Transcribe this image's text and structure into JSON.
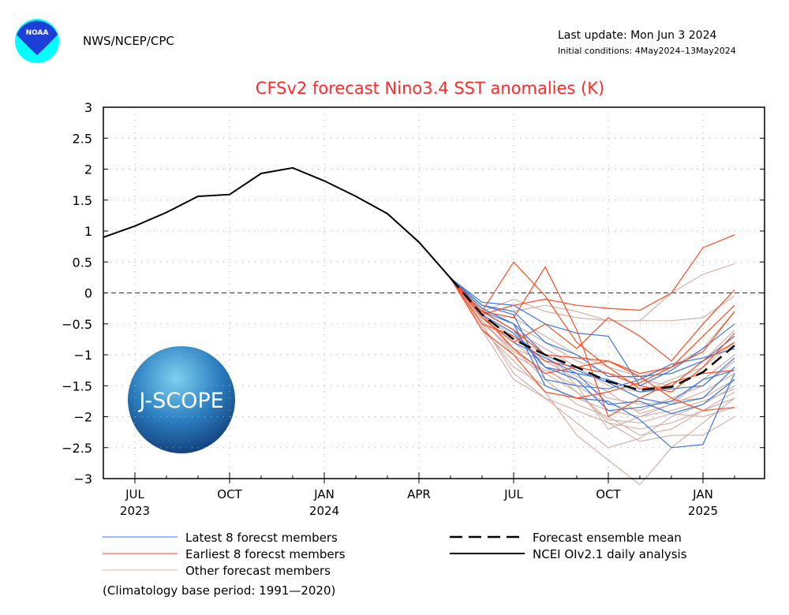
{
  "header": {
    "agency": "NWS/NCEP/CPC",
    "last_update": "Last update: Mon Jun 3 2024",
    "initial_conditions": "Initial conditions: 4May2024–13May2024",
    "noaa_logo_text": "NOAA",
    "jscope_logo_text": "J-SCOPE"
  },
  "chart_data": {
    "type": "line",
    "title": "CFSv2 forecast Nino3.4 SST anomalies (K)",
    "ylim": [
      -3,
      3
    ],
    "xlim": [
      "2023-06",
      "2025-02"
    ],
    "yticks": [
      3,
      2.5,
      2,
      1.5,
      1,
      0.5,
      0,
      -0.5,
      -1,
      -1.5,
      -2,
      -2.5,
      -3
    ],
    "ytick_labels": [
      "3",
      "2.5",
      "2",
      "1.5",
      "1",
      "0.5",
      "0",
      "−0.5",
      "−1",
      "−1.5",
      "−2",
      "−2.5",
      "−3"
    ],
    "xticks": [
      {
        "date": "2023-07",
        "month": "JUL",
        "year": "2023"
      },
      {
        "date": "2023-10",
        "month": "OCT",
        "year": ""
      },
      {
        "date": "2024-01",
        "month": "JAN",
        "year": "2024"
      },
      {
        "date": "2024-04",
        "month": "APR",
        "year": ""
      },
      {
        "date": "2024-07",
        "month": "JUL",
        "year": ""
      },
      {
        "date": "2024-10",
        "month": "OCT",
        "year": ""
      },
      {
        "date": "2025-01",
        "month": "JAN",
        "year": "2025"
      }
    ],
    "grid": true,
    "zero_line": "dashed",
    "colors": {
      "latest": "#3a78e0",
      "earliest": "#ff4a1c",
      "other": "#d4b0a8",
      "mean": "#000000",
      "analysis": "#000000"
    },
    "analysis": {
      "name": "NCEI OIv2.1 daily analysis",
      "x": [
        "2023-06",
        "2023-07",
        "2023-08",
        "2023-09",
        "2023-10",
        "2023-11",
        "2023-12",
        "2024-01",
        "2024-02",
        "2024-03",
        "2024-04",
        "2024-05"
      ],
      "y": [
        0.9,
        1.08,
        1.3,
        1.56,
        1.59,
        1.93,
        2.02,
        1.81,
        1.56,
        1.28,
        0.82,
        0.24
      ]
    },
    "forecast_x": [
      "2024-05",
      "2024-06",
      "2024-07",
      "2024-08",
      "2024-09",
      "2024-10",
      "2024-11",
      "2024-12",
      "2025-01",
      "2025-02"
    ],
    "ensemble_mean": {
      "name": "Forecast ensemble mean",
      "y": [
        0.24,
        -0.35,
        -0.75,
        -1.0,
        -1.2,
        -1.43,
        -1.57,
        -1.52,
        -1.28,
        -0.85
      ]
    },
    "other_members": {
      "name": "Other forecast members",
      "series": [
        [
          0.24,
          -0.2,
          -0.3,
          -0.2,
          -0.3,
          -0.45,
          -0.45,
          0.0,
          0.3,
          0.47
        ],
        [
          0.24,
          -0.3,
          -0.1,
          -0.3,
          -0.4,
          -0.45,
          -0.45,
          -0.45,
          -0.4,
          -0.05
        ],
        [
          0.24,
          -0.5,
          -1.3,
          -1.7,
          -2.1,
          -2.5,
          -2.35,
          -2.0,
          -1.8,
          -1.5
        ],
        [
          0.24,
          -0.6,
          -1.1,
          -1.6,
          -2.3,
          -2.7,
          -3.1,
          -2.5,
          -2.1,
          -1.7
        ],
        [
          0.24,
          -0.4,
          -0.9,
          -1.4,
          -1.8,
          -2.0,
          -2.3,
          -2.2,
          -1.9,
          -1.6
        ],
        [
          0.24,
          -0.35,
          -0.7,
          -1.0,
          -1.5,
          -1.8,
          -1.9,
          -1.7,
          -1.5,
          -1.1
        ],
        [
          0.24,
          -0.45,
          -1.0,
          -1.3,
          -1.6,
          -2.05,
          -2.1,
          -1.95,
          -2.0,
          -1.85
        ],
        [
          0.24,
          -0.3,
          -0.6,
          -0.9,
          -1.2,
          -1.5,
          -1.6,
          -1.4,
          -1.2,
          -0.8
        ],
        [
          0.24,
          -0.55,
          -1.2,
          -1.5,
          -1.7,
          -1.9,
          -2.0,
          -1.8,
          -1.6,
          -1.3
        ],
        [
          0.24,
          -0.25,
          -0.5,
          -0.8,
          -1.1,
          -1.3,
          -1.4,
          -1.5,
          -1.1,
          -0.6
        ],
        [
          0.24,
          -0.4,
          -0.8,
          -1.2,
          -1.6,
          -2.1,
          -2.4,
          -2.3,
          -2.3,
          -2.0
        ],
        [
          0.24,
          -0.5,
          -0.9,
          -1.1,
          -1.4,
          -1.7,
          -1.8,
          -1.75,
          -1.7,
          -1.4
        ],
        [
          0.24,
          -0.3,
          -0.4,
          -0.7,
          -1.0,
          -1.2,
          -1.35,
          -1.2,
          -0.9,
          -0.3
        ],
        [
          0.24,
          -0.6,
          -1.4,
          -1.7,
          -1.9,
          -2.1,
          -2.2,
          -2.1,
          -1.9,
          -1.7
        ],
        [
          0.24,
          -0.35,
          -0.75,
          -1.05,
          -1.35,
          -1.6,
          -1.95,
          -1.8,
          -1.4,
          -1.0
        ],
        [
          0.24,
          -0.45,
          -0.95,
          -1.25,
          -1.5,
          -2.2,
          -2.0,
          -1.9,
          -1.75,
          -1.55
        ]
      ]
    },
    "latest_members": {
      "name": "Latest 8 forecst members",
      "series": [
        [
          0.24,
          -0.15,
          -0.2,
          -0.5,
          -0.65,
          -0.7,
          -1.5,
          -1.25,
          -0.9,
          -0.5
        ],
        [
          0.24,
          -0.2,
          -0.3,
          -0.8,
          -1.0,
          -1.35,
          -1.35,
          -1.3,
          -1.1,
          -0.7
        ],
        [
          0.24,
          -0.3,
          -0.6,
          -1.2,
          -1.3,
          -1.4,
          -1.6,
          -1.55,
          -1.5,
          -1.05
        ],
        [
          0.24,
          -0.25,
          -0.5,
          -1.5,
          -1.7,
          -1.75,
          -2.05,
          -2.5,
          -2.45,
          -1.3
        ],
        [
          0.24,
          -0.4,
          -0.8,
          -1.05,
          -1.3,
          -1.8,
          -1.75,
          -1.95,
          -1.8,
          -1.4
        ],
        [
          0.24,
          -0.2,
          -0.35,
          -1.4,
          -1.5,
          -1.55,
          -1.4,
          -1.15,
          -1.05,
          -0.9
        ],
        [
          0.24,
          -0.3,
          -0.5,
          -1.0,
          -1.25,
          -1.45,
          -1.7,
          -1.8,
          -1.7,
          -1.2
        ],
        [
          0.24,
          -0.35,
          -0.65,
          -1.2,
          -1.4,
          -1.9,
          -1.85,
          -1.75,
          -1.4,
          -1.25
        ]
      ]
    },
    "earliest_members": {
      "name": "Earliest 8 forecst members",
      "series": [
        [
          0.24,
          -0.35,
          -0.2,
          -0.1,
          -0.2,
          -0.25,
          -0.28,
          0.0,
          0.73,
          0.94
        ],
        [
          0.24,
          -0.3,
          0.5,
          -0.05,
          -0.8,
          -1.2,
          -1.55,
          -1.5,
          -1.1,
          -0.8
        ],
        [
          0.24,
          -0.3,
          -0.4,
          0.42,
          -0.6,
          -2.0,
          -1.7,
          -1.45,
          -1.3,
          -1.25
        ],
        [
          0.24,
          -0.4,
          -0.8,
          -0.5,
          -0.9,
          -0.4,
          -0.7,
          -1.1,
          -0.5,
          0.05
        ],
        [
          0.24,
          -0.3,
          -0.6,
          -1.0,
          -1.05,
          -1.1,
          -1.3,
          -1.2,
          -0.7,
          -0.2
        ],
        [
          0.24,
          -0.5,
          -0.7,
          -1.1,
          -1.2,
          -1.3,
          -1.5,
          -1.6,
          -1.2,
          -0.65
        ],
        [
          0.24,
          -0.35,
          -0.9,
          -1.3,
          -1.2,
          -1.1,
          -1.35,
          -1.7,
          -1.9,
          -1.85
        ],
        [
          0.24,
          -0.6,
          -1.0,
          -1.6,
          -1.7,
          -1.6,
          -1.45,
          -1.2,
          -0.95,
          -0.3
        ]
      ]
    },
    "footnote": "(Climatology base period: 1991—2020)"
  }
}
